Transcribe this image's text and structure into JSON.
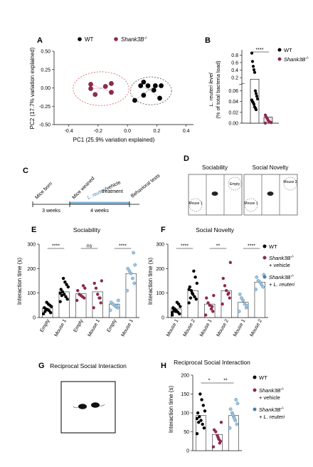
{
  "colors": {
    "wt": "#000000",
    "shank": "#8b2a4e",
    "lr": "#4a7fa8",
    "lr_bar": "#9ec4de"
  },
  "panel_letters": {
    "A": "A",
    "B": "B",
    "C": "C",
    "D": "D",
    "E": "E",
    "F": "F",
    "G": "G",
    "H": "H"
  },
  "panelA": {
    "legend_wt": "WT",
    "legend_shank": "Shank3B",
    "legend_shank_sup": "-/-",
    "xlabel": "PC1 (25.9% variation explained)",
    "ylabel": "PC2 (17.7% variation explained)",
    "xticks": [
      "-0.4",
      "-0.2",
      "0.0",
      "0.2",
      "0.4"
    ],
    "yticks": [
      "0.50",
      "0.25",
      "0.00",
      "-0.25",
      "-0.50"
    ]
  },
  "panelB": {
    "ylabel1": "L. reuteri level",
    "ylabel2": "(% of total bacteria load)",
    "yticks": [
      "0.8",
      "0.6",
      "0.4",
      "0.2",
      "0.06",
      "0.04",
      "0.02",
      "0.00"
    ],
    "sig": "****",
    "legend_wt": "WT",
    "legend_shank": "Shank3B",
    "legend_shank_sup": "-/-"
  },
  "panelC": {
    "mice_born": "Mice born",
    "mice_weaned": "Mice weaned",
    "lreuteri": "L. reuteri",
    "vehicle": "/vehicle",
    "treatment": "treatment",
    "behavioral": "Behavioral tests",
    "weeks3": "3 weeks",
    "weeks4": "4 weeks"
  },
  "panelD": {
    "title_soc": "Sociability",
    "title_nov": "Social Novelty",
    "empty": "Empty",
    "mouse1": "Mouse 1",
    "mouse2": "Mouse 2"
  },
  "panelE": {
    "title": "Sociability",
    "ylabel": "Interaction time (s)",
    "yticks": [
      "300",
      "200",
      "100",
      "0"
    ],
    "xlabels": [
      "Empty",
      "Mouse 1",
      "Empty",
      "Mouse 1",
      "Empty",
      "Mouse 1"
    ],
    "sig": [
      "****",
      "ns",
      "****"
    ]
  },
  "panelF": {
    "title": "Social Novelty",
    "ylabel": "Interaction time (s)",
    "yticks": [
      "300",
      "200",
      "100",
      "0"
    ],
    "xlabels": [
      "Mouse 1",
      "Mouse 2",
      "Mouse 1",
      "Mouse 2",
      "Mouse 1",
      "Mouse 2"
    ],
    "sig": [
      "****",
      "**",
      "****"
    ],
    "legend": {
      "wt": "WT",
      "shank": "Shank3B",
      "shank_sup": "-/-",
      "vehicle": "+ vehicle",
      "lreuteri": "+ L. reuteri"
    }
  },
  "panelG": {
    "title": "Reciprocal Social Interaction"
  },
  "panelH": {
    "title": "Reciprocal Social Interaction",
    "ylabel": "Interaction time (s)",
    "yticks": [
      "200",
      "150",
      "100",
      "50",
      "0"
    ],
    "sig": [
      "*",
      "**"
    ],
    "legend": {
      "wt": "WT",
      "shank": "Shank3B",
      "shank_sup": "-/-",
      "vehicle": "+ vehicle",
      "lreuteri": "+ L. reuteri"
    }
  },
  "chart_data": [
    {
      "type": "scatter",
      "xlabel": "PC1 (25.9% variation explained)",
      "ylabel": "PC2 (17.7% variation explained)",
      "xlim": [
        -0.5,
        0.45
      ],
      "ylim": [
        -0.5,
        0.5
      ],
      "series": [
        {
          "name": "WT",
          "points": [
            [
              0.11,
              0.08
            ],
            [
              0.14,
              0.03
            ],
            [
              0.19,
              0.03
            ],
            [
              0.23,
              0.03
            ],
            [
              0.09,
              0.03
            ],
            [
              0.18,
              -0.03
            ],
            [
              0.11,
              -0.1
            ],
            [
              0.05,
              -0.17
            ],
            [
              0.22,
              -0.14
            ]
          ]
        },
        {
          "name": "Shank3B-/-",
          "points": [
            [
              -0.25,
              0.05
            ],
            [
              -0.15,
              0.02
            ],
            [
              -0.11,
              0.06
            ],
            [
              -0.25,
              -0.01
            ],
            [
              -0.22,
              -0.09
            ],
            [
              -0.11,
              -0.06
            ]
          ]
        }
      ]
    },
    {
      "type": "bar",
      "ylabel": "L. reuteri level (% of total bacteria load)",
      "categories": [
        "WT",
        "Shank3B-/-"
      ],
      "values": [
        0.16,
        0.011
      ],
      "points": [
        [
          0.85,
          0.63,
          0.5,
          0.41,
          0.34,
          0.06,
          0.055,
          0.05,
          0.045,
          0.043,
          0.04,
          0.038,
          0.035,
          0.03,
          0.028,
          0.025
        ],
        [
          0.015,
          0.012,
          0.01,
          0.008,
          0.005,
          0.003,
          0.002,
          0.002,
          0.001,
          0.0
        ]
      ]
    },
    {
      "type": "bar",
      "title": "Sociability",
      "ylabel": "Interaction time (s)",
      "ylim": [
        0,
        300
      ],
      "categories": [
        "Empty",
        "Mouse 1",
        "Empty",
        "Mouse 1",
        "Empty",
        "Mouse 1"
      ],
      "values": [
        38,
        105,
        97,
        105,
        55,
        180
      ],
      "points": [
        [
          15,
          20,
          28,
          32,
          35,
          40,
          45,
          50,
          55,
          62,
          25
        ],
        [
          65,
          75,
          85,
          95,
          105,
          115,
          125,
          135,
          145,
          160,
          90,
          100
        ],
        [
          70,
          80,
          85,
          90,
          95,
          110,
          120,
          130
        ],
        [
          40,
          60,
          80,
          95,
          120,
          140,
          150,
          80
        ],
        [
          30,
          40,
          45,
          50,
          55,
          62,
          70,
          48
        ],
        [
          110,
          140,
          160,
          180,
          190,
          200,
          215,
          265
        ]
      ]
    },
    {
      "type": "bar",
      "title": "Social Novelty",
      "ylabel": "Interaction time (s)",
      "ylim": [
        0,
        300
      ],
      "categories": [
        "Mouse 1",
        "Mouse 2",
        "Mouse 1",
        "Mouse 2",
        "Mouse 1",
        "Mouse 2"
      ],
      "values": [
        35,
        110,
        55,
        110,
        62,
        145
      ],
      "points": [
        [
          10,
          15,
          22,
          28,
          35,
          40,
          45,
          55,
          62,
          25,
          30,
          20
        ],
        [
          60,
          75,
          85,
          95,
          110,
          125,
          140,
          165,
          190,
          100,
          80,
          115
        ],
        [
          10,
          25,
          35,
          50,
          60,
          80,
          90,
          45
        ],
        [
          55,
          80,
          95,
          110,
          130,
          160,
          225,
          100
        ],
        [
          25,
          40,
          55,
          70,
          80,
          95,
          48
        ],
        [
          115,
          125,
          135,
          145,
          150,
          165,
          175
        ]
      ]
    },
    {
      "type": "bar",
      "title": "Reciprocal Social Interaction",
      "ylabel": "Interaction time (s)",
      "ylim": [
        0,
        200
      ],
      "categories": [
        "WT",
        "Shank3B-/- + vehicle",
        "Shank3B-/- + L. reuteri"
      ],
      "values": [
        93,
        43,
        93
      ],
      "points": [
        [
          45,
          60,
          70,
          80,
          90,
          100,
          105,
          120,
          135,
          150,
          75,
          85
        ],
        [
          10,
          25,
          30,
          40,
          50,
          55,
          75,
          20,
          35
        ],
        [
          60,
          70,
          80,
          90,
          100,
          110,
          125,
          135,
          85,
          95
        ]
      ]
    }
  ]
}
